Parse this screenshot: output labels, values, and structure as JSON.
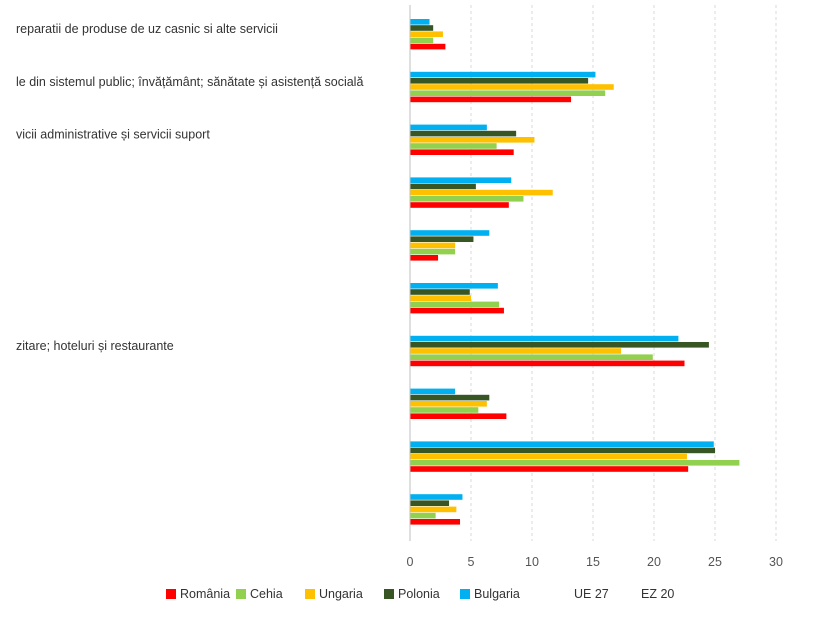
{
  "chart_data": {
    "type": "bar",
    "orientation": "horizontal",
    "title": "",
    "xlabel": "",
    "ylabel": "",
    "xlim": [
      0,
      30
    ],
    "ticks": [
      "0",
      "5",
      "10",
      "15",
      "20",
      "25",
      "30"
    ],
    "grid": true,
    "legend_position": "bottom",
    "categories": [
      "reparatii de produse de uz casnic si alte servicii",
      "le din sistemul public; învățământ; sănătate și asistență socială",
      "vicii administrative și servicii suport",
      "",
      "",
      "",
      "zitare; hoteluri și restaurante",
      "",
      "",
      ""
    ],
    "series": [
      {
        "name": "Bulgaria",
        "color": "#00B0F0",
        "values": [
          1.6,
          15.2,
          6.3,
          8.3,
          6.5,
          7.2,
          22.0,
          3.7,
          24.9,
          4.3
        ]
      },
      {
        "name": "Polonia",
        "color": "#375623",
        "values": [
          1.9,
          14.6,
          8.7,
          5.4,
          5.2,
          4.9,
          24.5,
          6.5,
          25.0,
          3.2
        ]
      },
      {
        "name": "Ungaria",
        "color": "#FFC000",
        "values": [
          2.7,
          16.7,
          10.2,
          11.7,
          3.7,
          5.0,
          17.3,
          6.3,
          22.7,
          3.8
        ]
      },
      {
        "name": "Cehia",
        "color": "#92D050",
        "values": [
          1.9,
          16.0,
          7.1,
          9.3,
          3.7,
          7.3,
          19.9,
          5.6,
          27.0,
          2.1
        ]
      },
      {
        "name": "România",
        "color": "#FF0000",
        "values": [
          2.9,
          13.2,
          8.5,
          8.1,
          2.3,
          7.7,
          22.5,
          7.9,
          22.8,
          4.1
        ]
      }
    ],
    "legend": [
      {
        "label": "România",
        "color": "#FF0000",
        "swatch": true
      },
      {
        "label": "Cehia",
        "color": "#92D050",
        "swatch": true
      },
      {
        "label": "Ungaria",
        "color": "#FFC000",
        "swatch": true
      },
      {
        "label": "Polonia",
        "color": "#375623",
        "swatch": true
      },
      {
        "label": "Bulgaria",
        "color": "#00B0F0",
        "swatch": true
      },
      {
        "label": "UE 27",
        "color": "",
        "swatch": false
      },
      {
        "label": "EZ 20",
        "color": "",
        "swatch": false
      }
    ]
  }
}
